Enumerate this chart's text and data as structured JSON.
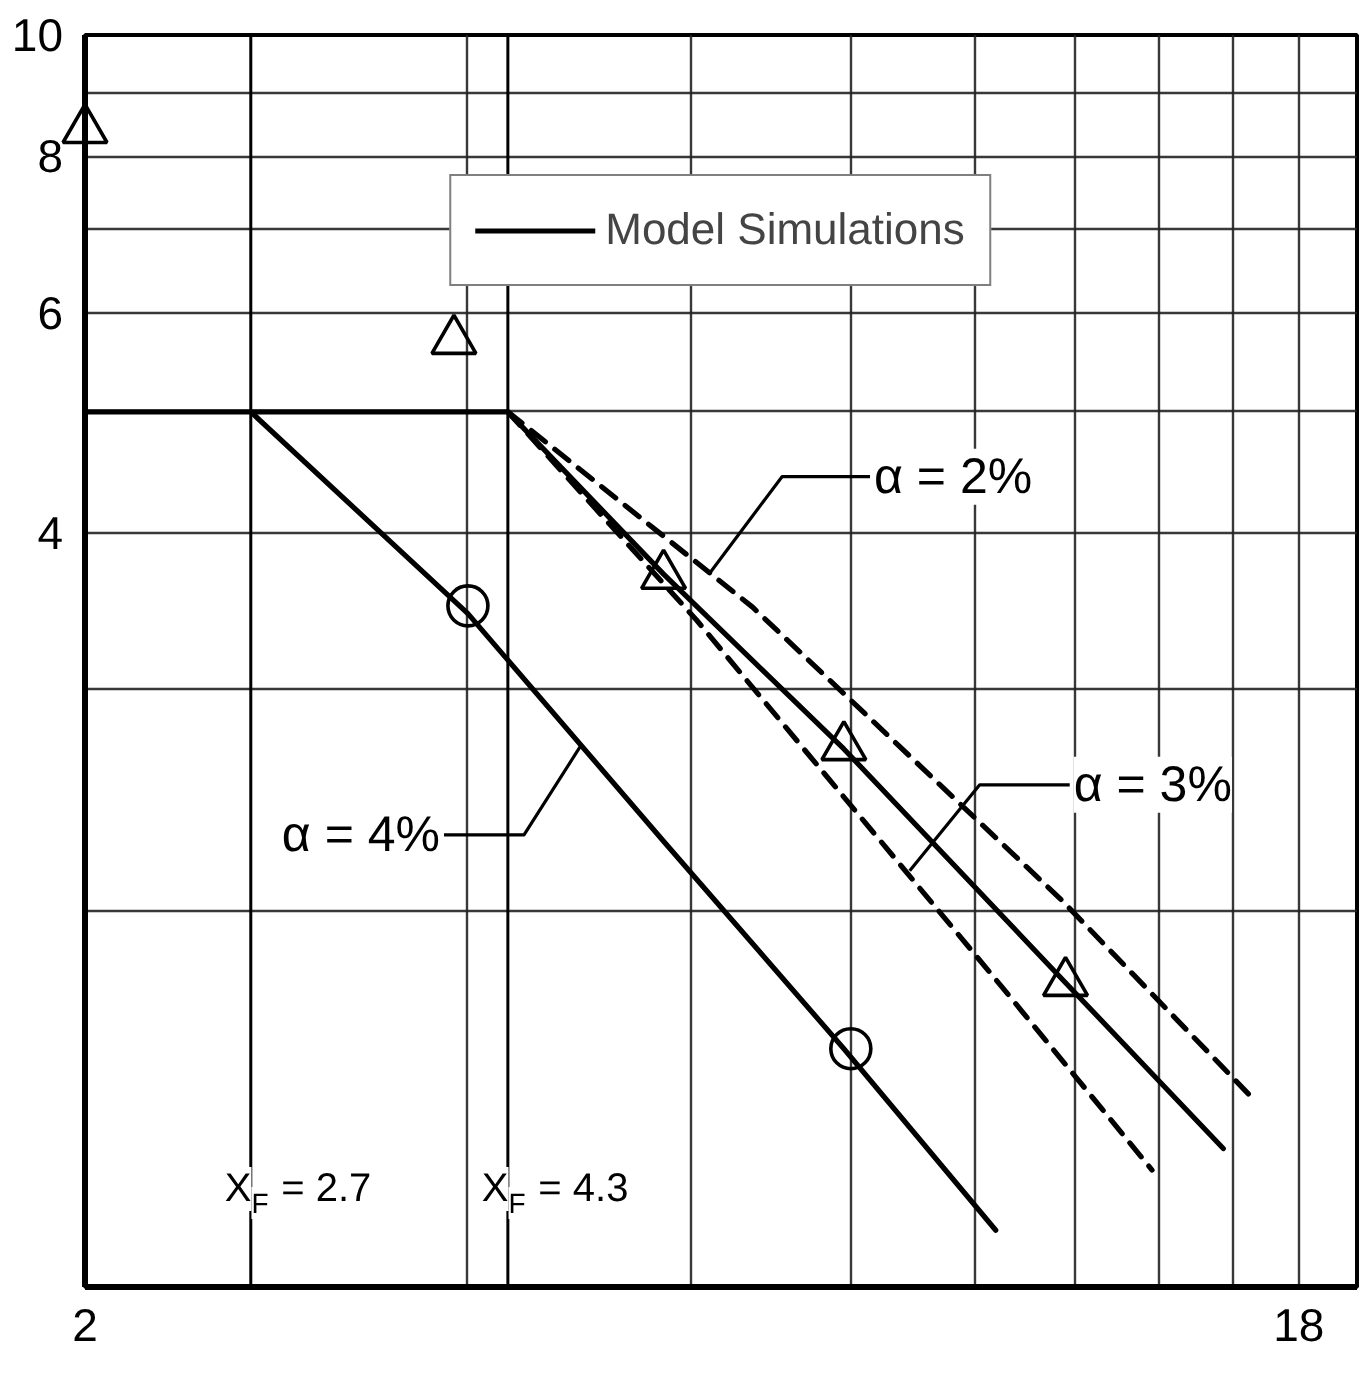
{
  "chart_data": {
    "type": "line",
    "log": "xy",
    "xlim": [
      2,
      20
    ],
    "ylim": [
      1,
      10
    ],
    "xticks": [
      2,
      {
        "value": 4,
        "label": null
      },
      {
        "value": 6,
        "label": null
      },
      {
        "value": 8,
        "label": null
      },
      {
        "value": 10,
        "label": null
      },
      {
        "value": 12,
        "label": null
      },
      {
        "value": 14,
        "label": null
      },
      {
        "value": 16,
        "label": null
      },
      18
    ],
    "yticks": [
      {
        "value": 1,
        "label": null
      },
      {
        "value": 2,
        "label": null
      },
      {
        "value": 3,
        "label": null
      },
      4,
      {
        "value": 5,
        "label": null
      },
      6,
      {
        "value": 7,
        "label": null
      },
      8,
      {
        "value": 9,
        "label": null
      },
      10
    ],
    "grid": true,
    "legend": "top",
    "series": [
      {
        "type": "scatter",
        "marker": "triangle",
        "color": "#000000",
        "x": [
          2,
          3.9,
          5.7,
          7.9,
          11.8
        ],
        "values": [
          8.4,
          5.7,
          3.7,
          2.7,
          1.75
        ]
      },
      {
        "type": "scatter",
        "marker": "circle",
        "color": "#000000",
        "x": [
          4,
          8
        ],
        "values": [
          3.5,
          1.55
        ]
      },
      {
        "name": "Model Simulations",
        "color": "#000000",
        "line_style": "solid",
        "x": [
          2.7,
          4,
          5.7,
          7.9,
          10.4
        ],
        "values": [
          5,
          3.45,
          2.27,
          1.55,
          1.11
        ]
      },
      {
        "color": "#000000",
        "line_style": "solid",
        "x": [
          2,
          4.3,
          5.7,
          7.9,
          11.8,
          15.7
        ],
        "values": [
          5,
          5,
          3.71,
          2.69,
          1.75,
          1.29
        ]
      },
      {
        "color": "#000000",
        "line_style": "dashed",
        "x": [
          4.3,
          6.7,
          11.7,
          16.5
        ],
        "values": [
          5,
          3.49,
          2.04,
          1.42
        ]
      },
      {
        "color": "#000000",
        "line_style": "dashed",
        "x": [
          4.3,
          6.05,
          10.5,
          13.8
        ],
        "values": [
          5,
          3.41,
          1.74,
          1.24
        ]
      }
    ],
    "ref_lines": [
      {
        "axis": "x",
        "value": 2.7,
        "label": "X$_{F}$ = 2.7"
      },
      {
        "axis": "x",
        "value": 4.3,
        "label": "X$_{F}$ = 4.3"
      }
    ],
    "annotations": [
      {
        "text": "α = 2%",
        "x": 6.2,
        "y": 3.72
      },
      {
        "text": "α = 3%",
        "x": 8.9,
        "y": 2.15
      },
      {
        "text": "α = 4%",
        "x": 4.9,
        "y": 2.7
      }
    ]
  }
}
